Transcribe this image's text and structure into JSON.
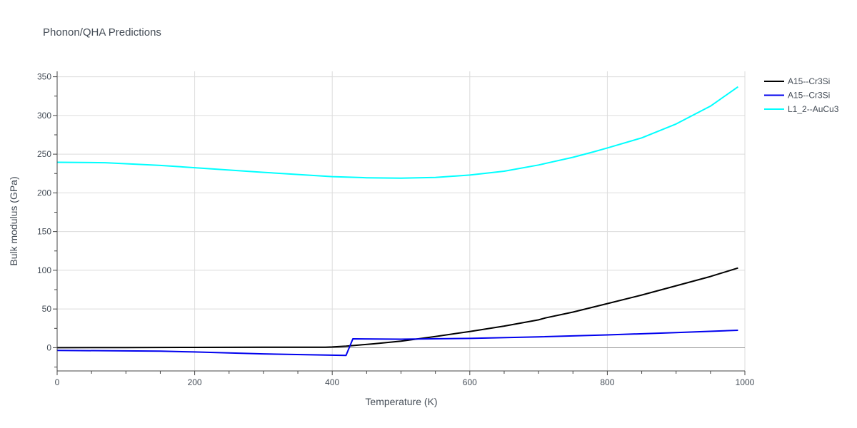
{
  "chart_data": {
    "type": "line",
    "title": "Phonon/QHA Predictions",
    "xlabel": "Temperature (K)",
    "ylabel": "Bulk modulus (GPa)",
    "xlim": [
      0,
      1000
    ],
    "ylim": [
      -30,
      357
    ],
    "xticks": [
      0,
      200,
      400,
      600,
      800,
      1000
    ],
    "yticks": [
      0,
      50,
      100,
      150,
      200,
      250,
      300,
      350
    ],
    "grid": true,
    "legend": "top-right",
    "series": [
      {
        "name": "A15--Cr3Si",
        "color": "#000000",
        "x": [
          0,
          100,
          200,
          300,
          390,
          400,
          420,
          440,
          460,
          500,
          550,
          600,
          650,
          700,
          710,
          750,
          800,
          850,
          900,
          950,
          990
        ],
        "y": [
          0,
          0.2,
          0.4,
          0.6,
          0.7,
          1,
          2,
          3.5,
          5,
          8.5,
          14.5,
          21,
          28,
          36,
          38.5,
          46,
          57,
          68,
          80,
          92,
          103
        ]
      },
      {
        "name": "A15--Cr3Si",
        "color": "#0000ee",
        "x": [
          0,
          150,
          200,
          300,
          420,
          430,
          500,
          600,
          700,
          800,
          900,
          990
        ],
        "y": [
          -3.5,
          -4.5,
          -5.5,
          -8,
          -10,
          11.5,
          11,
          12,
          14,
          16.5,
          19.5,
          22.5
        ]
      },
      {
        "name": "L1_2--AuCu3",
        "color": "#00ffff",
        "x": [
          0,
          70,
          150,
          200,
          300,
          400,
          450,
          500,
          550,
          600,
          650,
          700,
          750,
          780,
          800,
          850,
          900,
          950,
          990
        ],
        "y": [
          239.5,
          239,
          235.5,
          232.5,
          226.5,
          221,
          219.5,
          219,
          220,
          223,
          228,
          236,
          246,
          253,
          258,
          271,
          289,
          312,
          337
        ]
      }
    ]
  }
}
